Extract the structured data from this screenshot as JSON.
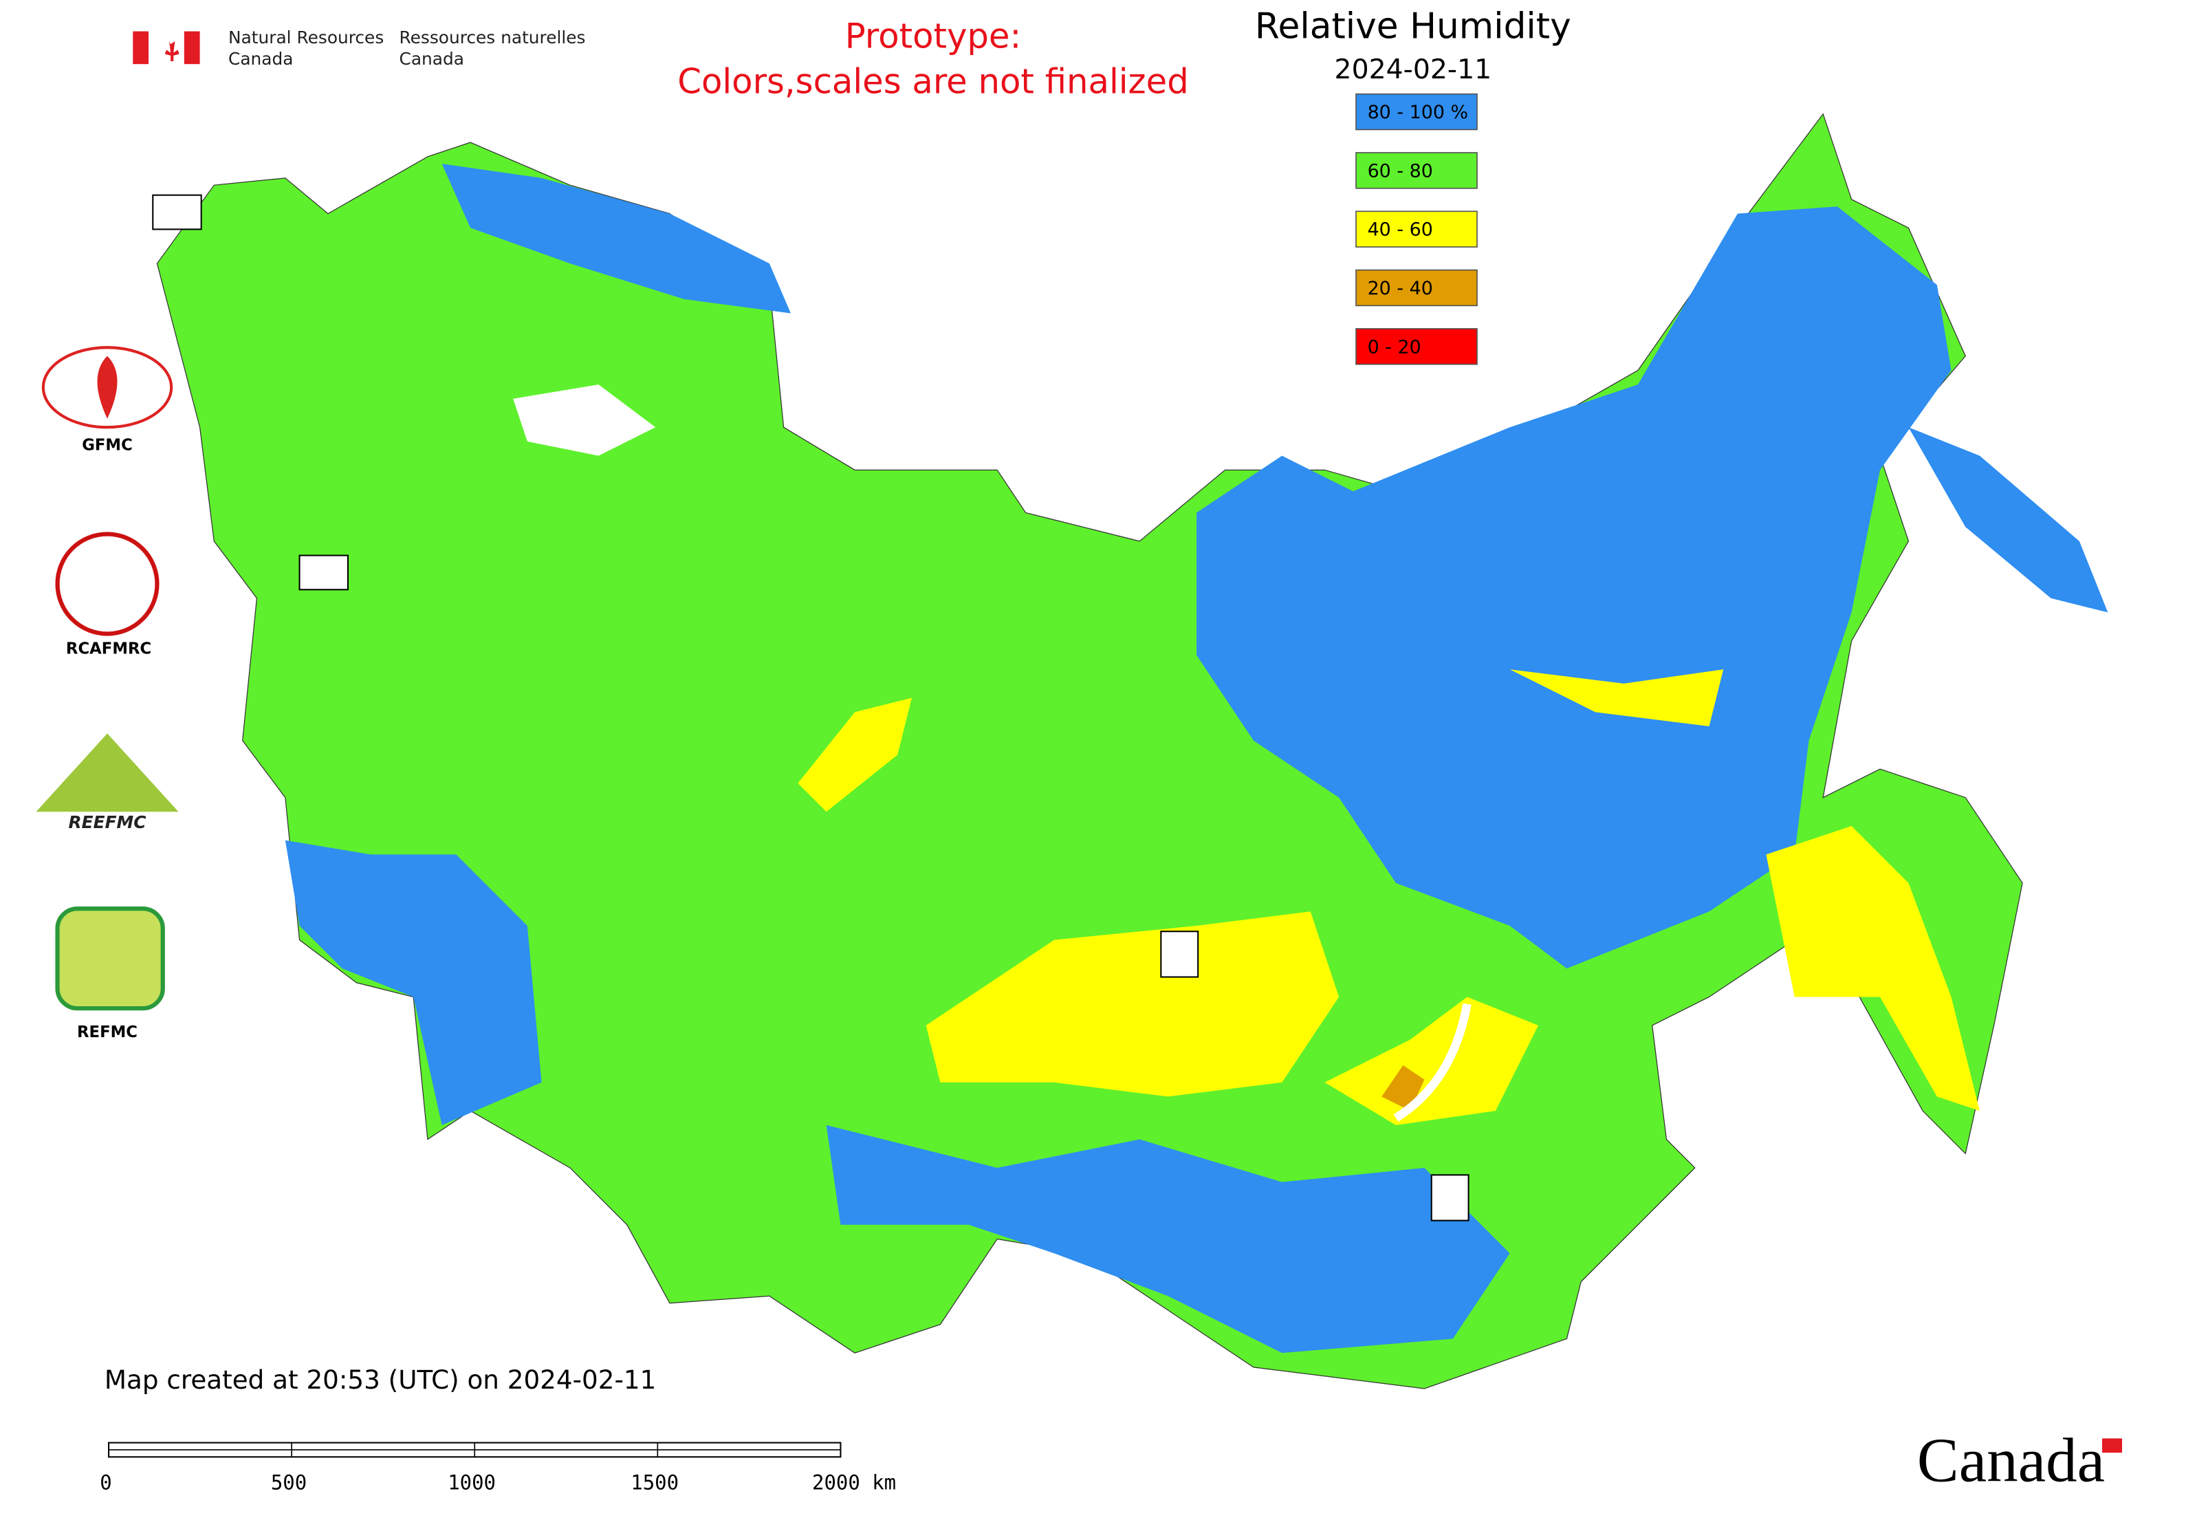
{
  "header": {
    "department_en": [
      "Natural Resources",
      "Canada"
    ],
    "department_fr": [
      "Ressources naturelles",
      "Canada"
    ]
  },
  "notice": [
    "Prototype:",
    "Colors,scales are not finalized"
  ],
  "title": "Relative Humidity",
  "date": "2024-02-11",
  "legend": [
    {
      "label": "80 - 100 %",
      "color": "#2f8ef0"
    },
    {
      "label": "60 - 80",
      "color": "#5ef02c"
    },
    {
      "label": "40 - 60",
      "color": "#ffff00"
    },
    {
      "label": "20 - 40",
      "color": "#e09c00"
    },
    {
      "label": "0 - 20",
      "color": "#ff0000"
    }
  ],
  "logos": [
    "GFMC",
    "RCAFMRC",
    "REEFMC",
    "REFMC"
  ],
  "footer": "Map created at 20:53 (UTC) on 2024-02-11",
  "scale_bar": [
    "0",
    "500",
    "1000",
    "1500",
    "2000 km"
  ],
  "wordmark": "Canada"
}
